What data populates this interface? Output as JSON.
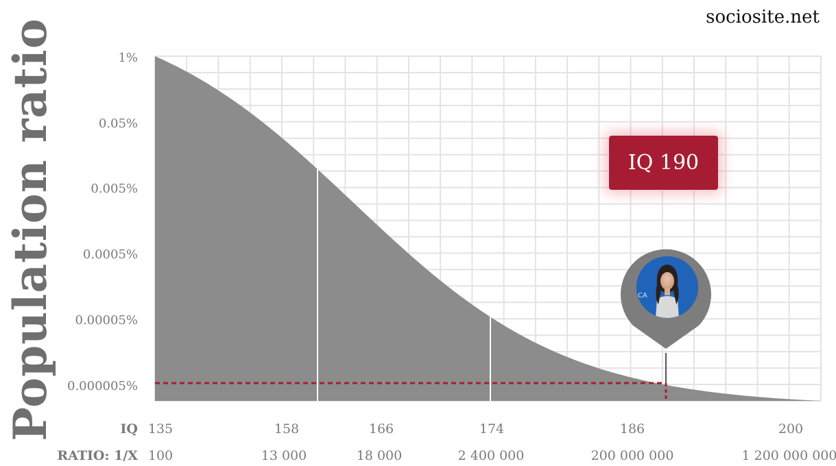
{
  "brand": "sociosite.net",
  "chart_data": {
    "type": "area",
    "ylabel": "Population ratio",
    "y_axis_scale": "log",
    "y_ticks": [
      "1%",
      "0.05%",
      "0.005%",
      "0.0005%",
      "0.00005%",
      "0.000005%"
    ],
    "x_row_labels": {
      "iq": "IQ",
      "ratio": "RATIO: 1/X"
    },
    "x_ticks": [
      {
        "iq": "135",
        "ratio": "100"
      },
      {
        "iq": "158",
        "ratio": "13 000"
      },
      {
        "iq": "166",
        "ratio": "18 000"
      },
      {
        "iq": "174",
        "ratio": "2 400 000"
      },
      {
        "iq": "186",
        "ratio": "200 000 000"
      },
      {
        "iq": "200",
        "ratio": "1 200 000 000"
      }
    ],
    "grid": true,
    "fill_color": "#8a8a8a",
    "highlight": {
      "label": "IQ 190",
      "color": "#a61d33"
    }
  }
}
